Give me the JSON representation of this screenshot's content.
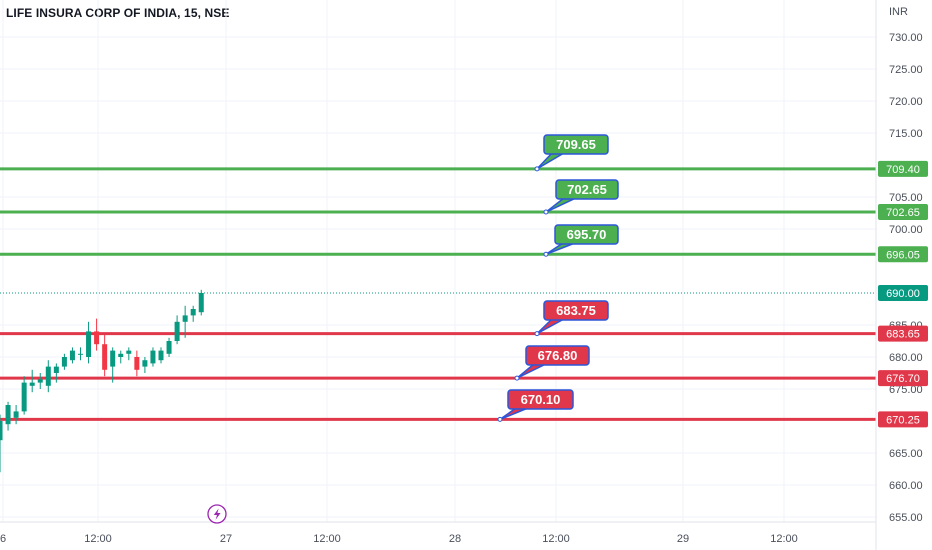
{
  "header": {
    "title": "LIFE INSURA CORP OF INDIA, 15, NSE"
  },
  "currency_label": "INR",
  "colors": {
    "up": "#089981",
    "down": "#f23645",
    "support_line": "#4caf50",
    "resistance_line": "#e0384a",
    "callout_border": "#2c56d9",
    "price_tag": "#089981",
    "grid": "#f0f3fa"
  },
  "lightning_icon": "lightning-bolt-icon",
  "chart_data": {
    "type": "candlestick",
    "title": "LIFE INSURA CORP OF INDIA, 15, NSE",
    "ylabel": "INR",
    "ylim": [
      654,
      733
    ],
    "y_ticks": [
      "730.00",
      "725.00",
      "720.00",
      "715.00",
      "705.00",
      "700.00",
      "685.00",
      "680.00",
      "675.00",
      "665.00",
      "660.00",
      "655.00"
    ],
    "x_ticks": [
      "6",
      "12:00",
      "27",
      "12:00",
      "28",
      "12:00",
      "29",
      "12:00"
    ],
    "last_price": 690.0,
    "last_price_label": "690.00",
    "horizontal_levels": [
      {
        "value": 709.4,
        "label": "709.40",
        "callout": "709.65",
        "kind": "green"
      },
      {
        "value": 702.65,
        "label": "702.65",
        "callout": "702.65",
        "kind": "green"
      },
      {
        "value": 696.05,
        "label": "696.05",
        "callout": "695.70",
        "kind": "green"
      },
      {
        "value": 683.65,
        "label": "683.65",
        "callout": "683.75",
        "kind": "red"
      },
      {
        "value": 676.7,
        "label": "676.70",
        "callout": "676.80",
        "kind": "red"
      },
      {
        "value": 670.25,
        "label": "670.25",
        "callout": "670.10",
        "kind": "red"
      }
    ],
    "candles": [
      {
        "o": 667.0,
        "h": 671.0,
        "l": 662.0,
        "c": 670.0
      },
      {
        "o": 669.5,
        "h": 673.0,
        "l": 668.5,
        "c": 672.5
      },
      {
        "o": 670.5,
        "h": 672.5,
        "l": 669.5,
        "c": 671.5
      },
      {
        "o": 671.5,
        "h": 677.0,
        "l": 671.0,
        "c": 676.0
      },
      {
        "o": 675.5,
        "h": 678.0,
        "l": 674.5,
        "c": 676.0
      },
      {
        "o": 676.0,
        "h": 677.5,
        "l": 675.0,
        "c": 676.5
      },
      {
        "o": 675.5,
        "h": 679.5,
        "l": 674.5,
        "c": 678.5
      },
      {
        "o": 677.5,
        "h": 679.0,
        "l": 676.0,
        "c": 678.5
      },
      {
        "o": 678.5,
        "h": 680.5,
        "l": 678.0,
        "c": 680.0
      },
      {
        "o": 679.5,
        "h": 681.5,
        "l": 679.0,
        "c": 681.0
      },
      {
        "o": 680.5,
        "h": 681.5,
        "l": 679.5,
        "c": 680.5
      },
      {
        "o": 680.0,
        "h": 685.5,
        "l": 679.0,
        "c": 684.0
      },
      {
        "o": 684.0,
        "h": 686.0,
        "l": 681.0,
        "c": 682.0
      },
      {
        "o": 682.0,
        "h": 683.5,
        "l": 677.0,
        "c": 678.0
      },
      {
        "o": 678.5,
        "h": 681.5,
        "l": 676.0,
        "c": 681.0
      },
      {
        "o": 680.0,
        "h": 681.0,
        "l": 679.0,
        "c": 680.5
      },
      {
        "o": 680.5,
        "h": 681.5,
        "l": 679.5,
        "c": 681.0
      },
      {
        "o": 680.0,
        "h": 681.0,
        "l": 677.0,
        "c": 678.0
      },
      {
        "o": 678.5,
        "h": 680.0,
        "l": 677.5,
        "c": 679.5
      },
      {
        "o": 679.0,
        "h": 681.5,
        "l": 678.5,
        "c": 681.0
      },
      {
        "o": 679.5,
        "h": 681.5,
        "l": 679.0,
        "c": 681.0
      },
      {
        "o": 680.5,
        "h": 683.0,
        "l": 680.0,
        "c": 682.5
      },
      {
        "o": 682.5,
        "h": 686.5,
        "l": 682.0,
        "c": 685.5
      },
      {
        "o": 685.5,
        "h": 688.0,
        "l": 683.0,
        "c": 686.5
      },
      {
        "o": 686.5,
        "h": 688.0,
        "l": 685.5,
        "c": 687.5
      },
      {
        "o": 687.0,
        "h": 690.5,
        "l": 686.5,
        "c": 690.0
      }
    ]
  }
}
